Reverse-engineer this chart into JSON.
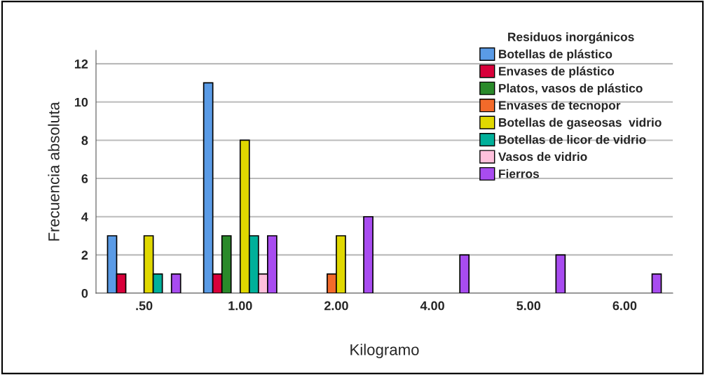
{
  "chart_data": {
    "type": "bar",
    "xlabel": "Kilogramo",
    "ylabel": "Frecuencia absoluta",
    "legend_title": "Residuos inorgánicos",
    "categories": [
      ".50",
      "1.00",
      "2.00",
      "4.00",
      "5.00",
      "6.00"
    ],
    "series": [
      {
        "name": "Botellas de plástico",
        "color": "#5a9be6",
        "values": [
          3,
          11,
          null,
          null,
          null,
          null
        ]
      },
      {
        "name": "Envases de plástico",
        "color": "#d8003a",
        "values": [
          1,
          1,
          null,
          null,
          null,
          null
        ]
      },
      {
        "name": "Platos, vasos de plástico",
        "color": "#2a8a2a",
        "values": [
          null,
          3,
          null,
          null,
          null,
          null
        ]
      },
      {
        "name": "Envases de tecnopor",
        "color": "#f26a2a",
        "values": [
          null,
          null,
          1,
          null,
          null,
          null
        ]
      },
      {
        "name": "Botellas de gaseosas  vidrio",
        "color": "#e0d800",
        "values": [
          3,
          8,
          3,
          null,
          null,
          null
        ]
      },
      {
        "name": "Botellas de licor de vidrio",
        "color": "#00b09a",
        "values": [
          1,
          3,
          null,
          null,
          null,
          null
        ]
      },
      {
        "name": "Vasos de vidrio",
        "color": "#ffc0dc",
        "values": [
          null,
          1,
          null,
          null,
          null,
          null
        ]
      },
      {
        "name": "Fierros",
        "color": "#a84cf0",
        "values": [
          1,
          3,
          4,
          2,
          2,
          1
        ]
      }
    ],
    "ylim": [
      0,
      12.7
    ],
    "yticks": [
      0,
      2,
      4,
      6,
      8,
      10,
      12
    ],
    "grid": "y",
    "legend": "top right"
  }
}
